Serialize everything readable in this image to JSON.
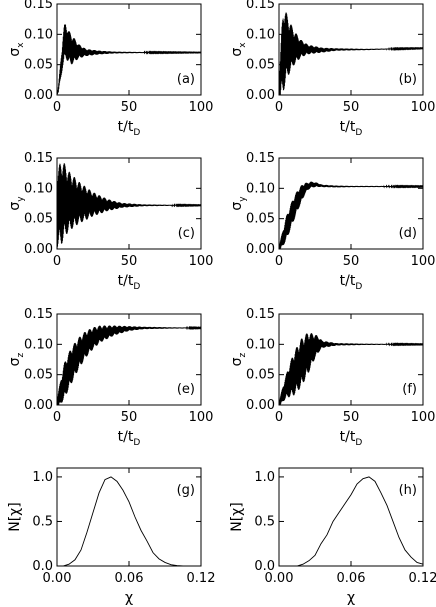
{
  "chart_data": [
    {
      "id": "a",
      "type": "line",
      "label": "(a)",
      "xlabel": "t/t",
      "xlabel_sub": "D",
      "ylabel": "σ",
      "ylabel_sub": "x",
      "xlim": [
        0,
        100
      ],
      "ylim": [
        0.0,
        0.15
      ],
      "xticks": [
        "0",
        "50",
        "100"
      ],
      "yticks": [
        "0.00",
        "0.05",
        "0.10",
        "0.15"
      ],
      "series": [
        {
          "values": [
            [
              0,
              0.0
            ],
            [
              1,
              0.01
            ],
            [
              2,
              0.03
            ],
            [
              3,
              0.05
            ],
            [
              4,
              0.07
            ],
            [
              5,
              0.085
            ],
            [
              6,
              0.09
            ],
            [
              7,
              0.085
            ],
            [
              8,
              0.08
            ],
            [
              10,
              0.075
            ],
            [
              15,
              0.072
            ],
            [
              20,
              0.07
            ],
            [
              30,
              0.07
            ],
            [
              40,
              0.07
            ],
            [
              60,
              0.07
            ],
            [
              80,
              0.07
            ],
            [
              100,
              0.07
            ]
          ],
          "oscillation": [
            [
              0,
              0.0
            ],
            [
              5,
              0.03
            ],
            [
              10,
              0.025
            ],
            [
              15,
              0.012
            ],
            [
              20,
              0.006
            ],
            [
              30,
              0.003
            ],
            [
              40,
              0.0015
            ],
            [
              60,
              0.0008
            ],
            [
              100,
              0.0004
            ]
          ]
        }
      ]
    },
    {
      "id": "b",
      "type": "line",
      "label": "(b)",
      "xlabel": "t/t",
      "xlabel_sub": "D",
      "ylabel": "σ",
      "ylabel_sub": "x",
      "xlim": [
        0,
        100
      ],
      "ylim": [
        0.0,
        0.15
      ],
      "xticks": [
        "0",
        "50",
        "100"
      ],
      "yticks": [
        "0.00",
        "0.05",
        "0.10",
        "0.15"
      ],
      "series": [
        {
          "values": [
            [
              0,
              0.0
            ],
            [
              1,
              0.03
            ],
            [
              2,
              0.06
            ],
            [
              3,
              0.075
            ],
            [
              5,
              0.08
            ],
            [
              10,
              0.078
            ],
            [
              20,
              0.075
            ],
            [
              30,
              0.074
            ],
            [
              40,
              0.075
            ],
            [
              60,
              0.075
            ],
            [
              80,
              0.076
            ],
            [
              100,
              0.077
            ]
          ],
          "oscillation": [
            [
              0,
              0.02
            ],
            [
              3,
              0.07
            ],
            [
              6,
              0.05
            ],
            [
              10,
              0.03
            ],
            [
              15,
              0.015
            ],
            [
              20,
              0.008
            ],
            [
              30,
              0.004
            ],
            [
              40,
              0.002
            ],
            [
              60,
              0.001
            ],
            [
              100,
              0.0005
            ]
          ]
        }
      ]
    },
    {
      "id": "c",
      "type": "line",
      "label": "(c)",
      "xlabel": "t/t",
      "xlabel_sub": "D",
      "ylabel": "σ",
      "ylabel_sub": "y",
      "xlim": [
        0,
        100
      ],
      "ylim": [
        0.0,
        0.15
      ],
      "xticks": [
        "0",
        "50",
        "100"
      ],
      "yticks": [
        "0.00",
        "0.05",
        "0.10",
        "0.15"
      ],
      "series": [
        {
          "values": [
            [
              0,
              0.06
            ],
            [
              2,
              0.075
            ],
            [
              5,
              0.08
            ],
            [
              10,
              0.078
            ],
            [
              20,
              0.075
            ],
            [
              30,
              0.073
            ],
            [
              40,
              0.072
            ],
            [
              60,
              0.072
            ],
            [
              80,
              0.072
            ],
            [
              100,
              0.072
            ]
          ],
          "oscillation": [
            [
              0,
              0.06
            ],
            [
              3,
              0.07
            ],
            [
              8,
              0.05
            ],
            [
              15,
              0.035
            ],
            [
              25,
              0.02
            ],
            [
              35,
              0.01
            ],
            [
              45,
              0.004
            ],
            [
              60,
              0.0015
            ],
            [
              80,
              0.0008
            ],
            [
              100,
              0.0005
            ]
          ]
        }
      ]
    },
    {
      "id": "d",
      "type": "line",
      "label": "(d)",
      "xlabel": "t/t",
      "xlabel_sub": "D",
      "ylabel": "σ",
      "ylabel_sub": "y",
      "xlim": [
        0,
        100
      ],
      "ylim": [
        0.0,
        0.15
      ],
      "xticks": [
        "0",
        "50",
        "100"
      ],
      "yticks": [
        "0.00",
        "0.05",
        "0.10",
        "0.15"
      ],
      "series": [
        {
          "values": [
            [
              0,
              0.0
            ],
            [
              3,
              0.02
            ],
            [
              6,
              0.04
            ],
            [
              10,
              0.065
            ],
            [
              14,
              0.085
            ],
            [
              18,
              0.1
            ],
            [
              22,
              0.106
            ],
            [
              26,
              0.106
            ],
            [
              30,
              0.104
            ],
            [
              40,
              0.103
            ],
            [
              60,
              0.103
            ],
            [
              80,
              0.103
            ],
            [
              100,
              0.103
            ]
          ],
          "oscillation": [
            [
              0,
              0.005
            ],
            [
              5,
              0.02
            ],
            [
              10,
              0.02
            ],
            [
              15,
              0.015
            ],
            [
              20,
              0.006
            ],
            [
              30,
              0.002
            ],
            [
              50,
              0.001
            ],
            [
              100,
              0.0006
            ]
          ]
        }
      ]
    },
    {
      "id": "e",
      "type": "line",
      "label": "(e)",
      "xlabel": "t/t",
      "xlabel_sub": "D",
      "ylabel": "σ",
      "ylabel_sub": "z",
      "xlim": [
        0,
        100
      ],
      "ylim": [
        0.0,
        0.15
      ],
      "xticks": [
        "0",
        "50",
        "100"
      ],
      "yticks": [
        "0.00",
        "0.05",
        "0.10",
        "0.15"
      ],
      "series": [
        {
          "values": [
            [
              0,
              0.0
            ],
            [
              3,
              0.025
            ],
            [
              6,
              0.045
            ],
            [
              10,
              0.065
            ],
            [
              15,
              0.085
            ],
            [
              20,
              0.1
            ],
            [
              25,
              0.11
            ],
            [
              30,
              0.117
            ],
            [
              40,
              0.123
            ],
            [
              50,
              0.126
            ],
            [
              60,
              0.127
            ],
            [
              80,
              0.127
            ],
            [
              100,
              0.127
            ]
          ],
          "oscillation": [
            [
              0,
              0.01
            ],
            [
              5,
              0.03
            ],
            [
              10,
              0.03
            ],
            [
              20,
              0.022
            ],
            [
              30,
              0.014
            ],
            [
              40,
              0.008
            ],
            [
              50,
              0.004
            ],
            [
              60,
              0.002
            ],
            [
              80,
              0.001
            ],
            [
              100,
              0.0006
            ]
          ]
        }
      ]
    },
    {
      "id": "f",
      "type": "line",
      "label": "(f)",
      "xlabel": "t/t",
      "xlabel_sub": "D",
      "ylabel": "σ",
      "ylabel_sub": "z",
      "xlim": [
        0,
        100
      ],
      "ylim": [
        0.0,
        0.15
      ],
      "xticks": [
        "0",
        "50",
        "100"
      ],
      "yticks": [
        "0.00",
        "0.05",
        "0.10",
        "0.15"
      ],
      "series": [
        {
          "values": [
            [
              0,
              0.0
            ],
            [
              3,
              0.02
            ],
            [
              6,
              0.035
            ],
            [
              10,
              0.05
            ],
            [
              15,
              0.068
            ],
            [
              20,
              0.085
            ],
            [
              25,
              0.097
            ],
            [
              28,
              0.1
            ],
            [
              35,
              0.1
            ],
            [
              50,
              0.1
            ],
            [
              70,
              0.1
            ],
            [
              100,
              0.1
            ]
          ],
          "oscillation": [
            [
              0,
              0.005
            ],
            [
              5,
              0.02
            ],
            [
              10,
              0.035
            ],
            [
              15,
              0.04
            ],
            [
              20,
              0.035
            ],
            [
              25,
              0.02
            ],
            [
              30,
              0.006
            ],
            [
              40,
              0.002
            ],
            [
              60,
              0.001
            ],
            [
              100,
              0.0005
            ]
          ]
        }
      ]
    },
    {
      "id": "g",
      "type": "line",
      "label": "(g)",
      "xlabel": "χ",
      "xlabel_sub": "",
      "ylabel": "N[χ]",
      "ylabel_sub": "",
      "xlim": [
        0,
        0.12
      ],
      "ylim": [
        0.0,
        1.1
      ],
      "xticks": [
        "0.00",
        "0.06",
        "0.12"
      ],
      "yticks": [
        "0.0",
        "0.5",
        "1.0"
      ],
      "series": [
        {
          "values": [
            [
              0.0,
              0.0
            ],
            [
              0.005,
              0.0
            ],
            [
              0.01,
              0.02
            ],
            [
              0.015,
              0.07
            ],
            [
              0.02,
              0.18
            ],
            [
              0.025,
              0.38
            ],
            [
              0.03,
              0.6
            ],
            [
              0.035,
              0.82
            ],
            [
              0.04,
              0.97
            ],
            [
              0.045,
              1.0
            ],
            [
              0.05,
              0.95
            ],
            [
              0.055,
              0.85
            ],
            [
              0.06,
              0.72
            ],
            [
              0.065,
              0.55
            ],
            [
              0.07,
              0.4
            ],
            [
              0.075,
              0.28
            ],
            [
              0.08,
              0.15
            ],
            [
              0.085,
              0.08
            ],
            [
              0.09,
              0.04
            ],
            [
              0.095,
              0.015
            ],
            [
              0.1,
              0.005
            ],
            [
              0.105,
              0.0
            ],
            [
              0.12,
              0.0
            ]
          ]
        }
      ]
    },
    {
      "id": "h",
      "type": "line",
      "label": "(h)",
      "xlabel": "χ",
      "xlabel_sub": "",
      "ylabel": "N[χ]",
      "ylabel_sub": "",
      "xlim": [
        0,
        0.12
      ],
      "ylim": [
        0.0,
        1.1
      ],
      "xticks": [
        "0.00",
        "0.06",
        "0.12"
      ],
      "yticks": [
        "0.0",
        "0.5",
        "1.0"
      ],
      "series": [
        {
          "values": [
            [
              0.0,
              0.0
            ],
            [
              0.015,
              0.0
            ],
            [
              0.02,
              0.02
            ],
            [
              0.025,
              0.06
            ],
            [
              0.03,
              0.12
            ],
            [
              0.035,
              0.25
            ],
            [
              0.04,
              0.35
            ],
            [
              0.045,
              0.5
            ],
            [
              0.05,
              0.6
            ],
            [
              0.055,
              0.7
            ],
            [
              0.06,
              0.8
            ],
            [
              0.065,
              0.92
            ],
            [
              0.07,
              0.98
            ],
            [
              0.075,
              1.0
            ],
            [
              0.08,
              0.95
            ],
            [
              0.085,
              0.82
            ],
            [
              0.09,
              0.68
            ],
            [
              0.095,
              0.5
            ],
            [
              0.1,
              0.32
            ],
            [
              0.105,
              0.18
            ],
            [
              0.11,
              0.1
            ],
            [
              0.115,
              0.04
            ],
            [
              0.12,
              0.02
            ]
          ]
        }
      ]
    }
  ]
}
